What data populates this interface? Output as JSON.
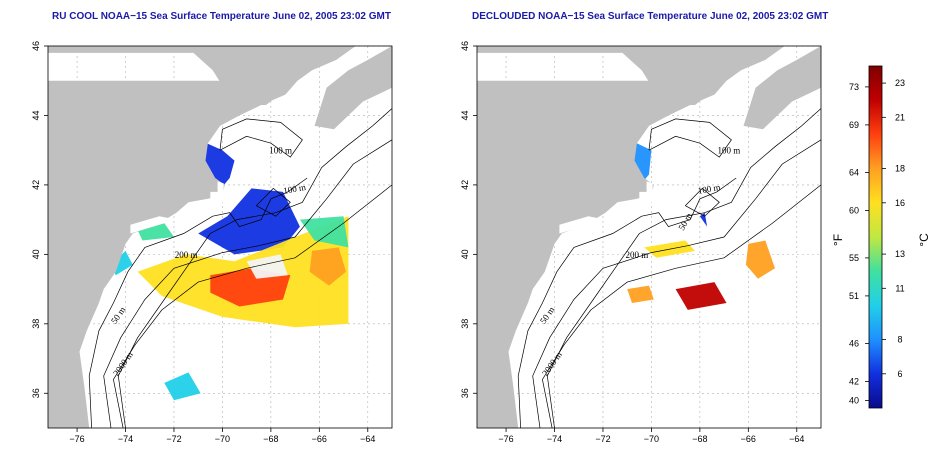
{
  "panels": [
    {
      "title": "RU COOL NOAA−15 Sea Surface Temperature June 02, 2005 23:02 GMT",
      "contour_labels": [
        "100 m",
        "100 m",
        "200 m",
        "50 m",
        "2000 m"
      ]
    },
    {
      "title": "DECLOUDED NOAA−15 Sea Surface Temperature June 02, 2005 23:02 GMT",
      "contour_labels": [
        "100 m",
        "100 m",
        "50 m",
        "200 m",
        "50 m",
        "2000 m"
      ]
    }
  ],
  "axes": {
    "x_ticks": [
      "−76",
      "−74",
      "−72",
      "−70",
      "−68",
      "−66",
      "−64"
    ],
    "y_ticks": [
      "36",
      "38",
      "40",
      "42",
      "44",
      "46"
    ],
    "lon_range": [
      -77.2,
      -63.0
    ],
    "lat_range": [
      35.0,
      46.0
    ],
    "grid": "dotted"
  },
  "colorbar": {
    "fahrenheit_label": "°F",
    "celsius_label": "°C",
    "fahrenheit_ticks": [
      "73",
      "69",
      "64",
      "60",
      "55",
      "51",
      "46",
      "42",
      "40"
    ],
    "celsius_ticks": [
      "23",
      "21",
      "18",
      "16",
      "13",
      "11",
      "8",
      "6"
    ],
    "range_c": [
      4.0,
      24.0
    ],
    "colors": [
      "#0a0a8c",
      "#1030e0",
      "#1e90ff",
      "#20d0e8",
      "#40e0a0",
      "#c0e840",
      "#ffe020",
      "#ffa020",
      "#ff4010",
      "#c00000",
      "#800000"
    ]
  },
  "colors": {
    "land": "#c0c0c0",
    "title": "#1a1aa8"
  }
}
